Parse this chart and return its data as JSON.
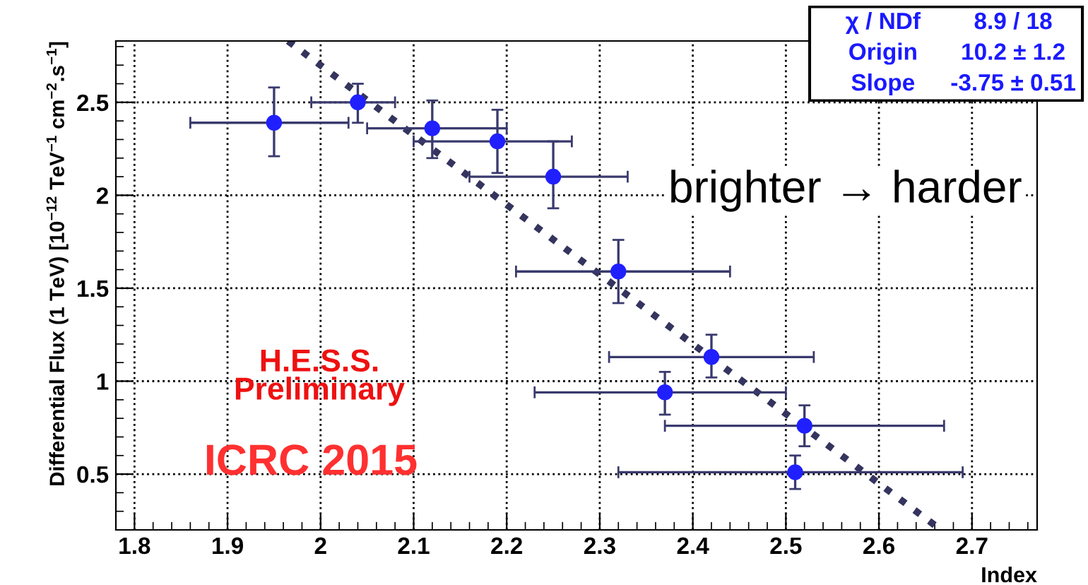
{
  "chart_data": {
    "type": "scatter",
    "xlabel": "Index",
    "ylabel": "Differential Flux (1 TeV) [10$^{−12}$ TeV$^{−1}$ cm$^{−2}$.s$^{−1}$]",
    "xlim": [
      1.78,
      2.77
    ],
    "ylim": [
      0.2,
      2.83
    ],
    "xticks": [
      1.8,
      1.9,
      2,
      2.1,
      2.2,
      2.3,
      2.4,
      2.5,
      2.6,
      2.7
    ],
    "yticks": [
      0.5,
      1,
      1.5,
      2,
      2.5
    ],
    "grid": true,
    "legend": false,
    "series": [
      {
        "marker": "circle",
        "color": "#2020ff",
        "x": [
          1.95,
          2.04,
          2.12,
          2.19,
          2.25,
          2.32,
          2.42,
          2.37,
          2.52,
          2.51
        ],
        "values": [
          2.39,
          2.5,
          2.36,
          2.29,
          2.1,
          1.59,
          1.13,
          0.94,
          0.76,
          0.51
        ],
        "errors": [
          [
            2.21,
            2.58
          ],
          [
            2.39,
            2.6
          ],
          [
            2.2,
            2.51
          ],
          [
            2.12,
            2.46
          ],
          [
            1.93,
            2.29
          ],
          [
            1.42,
            1.76
          ],
          [
            1.02,
            1.25
          ],
          [
            0.82,
            1.05
          ],
          [
            0.65,
            0.87
          ],
          [
            0.42,
            0.6
          ]
        ],
        "xerrors": [
          [
            1.86,
            2.03
          ],
          [
            1.99,
            2.08
          ],
          [
            2.05,
            2.2
          ],
          [
            2.1,
            2.27
          ],
          [
            2.16,
            2.33
          ],
          [
            2.21,
            2.44
          ],
          [
            2.31,
            2.53
          ],
          [
            2.23,
            2.5
          ],
          [
            2.37,
            2.67
          ],
          [
            2.32,
            2.69
          ]
        ]
      },
      {
        "type": "line",
        "color": "#34345e",
        "line_style": "dotted",
        "marker": "none",
        "x": [
          1.965,
          2.66
        ],
        "values": [
          2.83,
          0.225
        ]
      }
    ],
    "annotations": [
      "χ / NDf",
      "8.9 / 18",
      "Origin",
      "10.2 ± 1.2",
      "Slope",
      "-3.75 ± 0.51",
      "brighter → harder",
      "H.E.S.S.\nPreliminary",
      "ICRC 2015"
    ]
  }
}
